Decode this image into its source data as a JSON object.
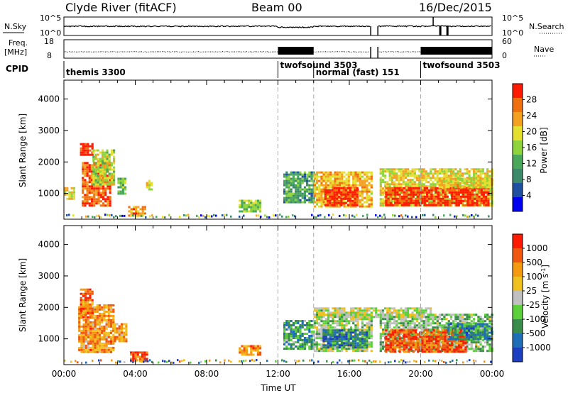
{
  "header": {
    "station": "Clyde River (fitACF)",
    "beam": "Beam 00",
    "date": "16/Dec/2015"
  },
  "strip_labels": {
    "nsky": "N.Sky",
    "nsky_top": "10^5",
    "nsky_bottom": "10^0",
    "nsearch": "N.Search",
    "nsearch_top": "10^5",
    "nsearch_bottom": "10^0",
    "freq_line1": "Freq.",
    "freq_line2": "[MHz]",
    "freq_top": "18",
    "freq_bottom": "8",
    "nave": "Nave",
    "nave_top": "60",
    "nave_bottom": "0",
    "cpid": "CPID"
  },
  "cpid_segments": [
    {
      "label": "themis 3300",
      "start_hr": 0.0,
      "end_hr": 12.0
    },
    {
      "label": "twofsound 3503",
      "start_hr": 12.0,
      "end_hr": 14.0
    },
    {
      "label": "normal (fast) 151",
      "start_hr": 14.0,
      "end_hr": 20.0
    },
    {
      "label": "twofsound 3503",
      "start_hr": 20.0,
      "end_hr": 24.0
    }
  ],
  "colors": {
    "power_scale": [
      "#0000ee",
      "#1e4fa0",
      "#3d8a6a",
      "#4aa85a",
      "#8fd43a",
      "#e5e030",
      "#f4a020",
      "#f07010",
      "#ff1a00"
    ],
    "velocity_scale": [
      "#1b3fc0",
      "#1f6fb8",
      "#3a8c4a",
      "#5bd03a",
      "#c0c0c0",
      "#f0c020",
      "#f59a10",
      "#f05810",
      "#ff1a00"
    ]
  },
  "chart_data": [
    {
      "type": "heatmap",
      "title": "",
      "xlabel": "",
      "ylabel": "Slant Range [km]",
      "xlim": [
        0,
        24
      ],
      "ylim": [
        180,
        4600
      ],
      "x_tick_labels": [
        "00:00",
        "04:00",
        "08:00",
        "12:00",
        "16:00",
        "20:00",
        "00:00"
      ],
      "y_tick_labels": [
        "1000",
        "2000",
        "3000",
        "4000"
      ],
      "y_ticks": [
        1000,
        2000,
        3000,
        4000
      ],
      "colorbar": {
        "label": "Power [dB]",
        "range": [
          0,
          30
        ],
        "tick_labels": [
          "4",
          "8",
          "12",
          "16",
          "20",
          "24",
          "28"
        ]
      },
      "regions": [
        {
          "t": [
            0.0,
            0.6
          ],
          "r": [
            800,
            1200
          ],
          "level": 0.65
        },
        {
          "t": [
            0.9,
            1.6
          ],
          "r": [
            2200,
            2600
          ],
          "level": 0.95
        },
        {
          "t": [
            1.0,
            2.6
          ],
          "r": [
            600,
            2000
          ],
          "level": 0.85
        },
        {
          "t": [
            1.6,
            2.8
          ],
          "r": [
            1300,
            2400
          ],
          "level": 0.55
        },
        {
          "t": [
            3.0,
            3.5
          ],
          "r": [
            1000,
            1500
          ],
          "level": 0.45
        },
        {
          "t": [
            4.6,
            4.9
          ],
          "r": [
            1100,
            1500
          ],
          "level": 0.6
        },
        {
          "t": [
            3.6,
            4.6
          ],
          "r": [
            300,
            600
          ],
          "level": 0.8
        },
        {
          "t": [
            9.8,
            11.0
          ],
          "r": [
            400,
            800
          ],
          "level": 0.5
        },
        {
          "t": [
            12.3,
            14.0
          ],
          "r": [
            700,
            1700
          ],
          "level": 0.35
        },
        {
          "t": [
            14.0,
            17.2
          ],
          "r": [
            600,
            1700
          ],
          "level": 0.7
        },
        {
          "t": [
            14.6,
            16.5
          ],
          "r": [
            600,
            1200
          ],
          "level": 0.95
        },
        {
          "t": [
            17.7,
            24.0
          ],
          "r": [
            600,
            1800
          ],
          "level": 0.6
        },
        {
          "t": [
            18.0,
            23.8
          ],
          "r": [
            600,
            1200
          ],
          "level": 0.95
        },
        {
          "t": [
            21.0,
            24.0
          ],
          "r": [
            1200,
            1500
          ],
          "level": 0.65
        }
      ]
    },
    {
      "type": "heatmap",
      "title": "",
      "xlabel": "Time UT",
      "ylabel": "Slant Range [km]",
      "xlim": [
        0,
        24
      ],
      "ylim": [
        180,
        4600
      ],
      "x_tick_labels": [
        "00:00",
        "04:00",
        "08:00",
        "12:00",
        "16:00",
        "20:00",
        "00:00"
      ],
      "y_tick_labels": [
        "1000",
        "2000",
        "3000",
        "4000"
      ],
      "y_ticks": [
        1000,
        2000,
        3000,
        4000
      ],
      "colorbar": {
        "label": "Velocity [m s^-1]",
        "range": [
          -1500,
          1500
        ],
        "tick_labels": [
          "1000",
          "500",
          "100",
          "25",
          "-25",
          "-100",
          "-500",
          "-1000"
        ]
      },
      "regions": [
        {
          "t": [
            0.8,
            2.8
          ],
          "r": [
            600,
            2100
          ],
          "level": 0.72
        },
        {
          "t": [
            0.9,
            1.6
          ],
          "r": [
            1700,
            2600
          ],
          "level": 0.8
        },
        {
          "t": [
            2.8,
            3.5
          ],
          "r": [
            900,
            1500
          ],
          "level": 0.7
        },
        {
          "t": [
            3.7,
            4.6
          ],
          "r": [
            300,
            600
          ],
          "level": 0.85
        },
        {
          "t": [
            9.8,
            11.0
          ],
          "r": [
            500,
            800
          ],
          "level": 0.75
        },
        {
          "t": [
            12.3,
            14.0
          ],
          "r": [
            700,
            1600
          ],
          "level": 0.3
        },
        {
          "t": [
            14.0,
            17.2
          ],
          "r": [
            600,
            1800
          ],
          "level": 0.45
        },
        {
          "t": [
            14.5,
            17.0
          ],
          "r": [
            700,
            1300
          ],
          "level": 0.2
        },
        {
          "t": [
            17.7,
            24.0
          ],
          "r": [
            600,
            1800
          ],
          "level": 0.4
        },
        {
          "t": [
            18.0,
            22.5
          ],
          "r": [
            600,
            1300
          ],
          "level": 0.85
        },
        {
          "t": [
            21.5,
            24.0
          ],
          "r": [
            1000,
            1500
          ],
          "level": 0.25
        },
        {
          "t": [
            14.0,
            20.5
          ],
          "r": [
            1700,
            2000
          ],
          "level": 0.5
        }
      ]
    }
  ]
}
